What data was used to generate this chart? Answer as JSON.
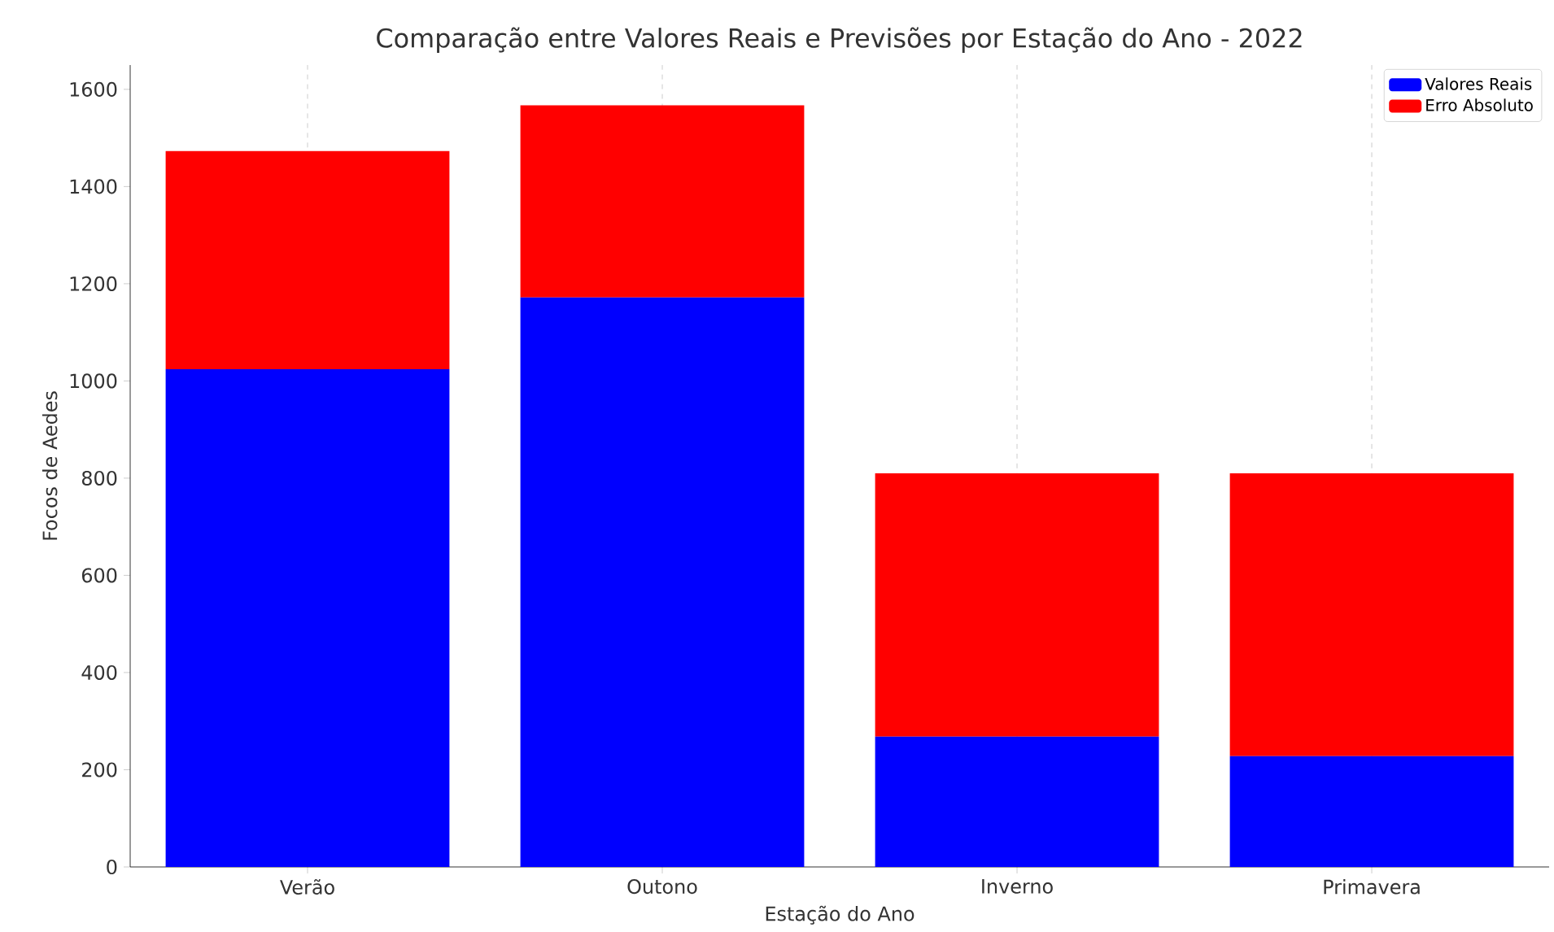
{
  "chart_data": {
    "type": "bar",
    "title": "Comparação entre Valores Reais e Previsões por Estação do Ano - 2022",
    "xlabel": "Estação do Ano",
    "ylabel": "Focos de Aedes",
    "categories": [
      "Verão",
      "Outono",
      "Inverno",
      "Primavera"
    ],
    "stacked": true,
    "series": [
      {
        "name": "Valores Reais",
        "color": "#0000ff",
        "values": [
          1024,
          1172,
          268,
          228
        ]
      },
      {
        "name": "Erro Absoluto",
        "color": "#ff0000",
        "values": [
          449,
          395,
          542,
          582
        ]
      }
    ],
    "ylim": [
      0,
      1650
    ],
    "yticks": [
      0,
      200,
      400,
      600,
      800,
      1000,
      1200,
      1400,
      1600
    ],
    "grid": "x",
    "legend": "top right"
  }
}
